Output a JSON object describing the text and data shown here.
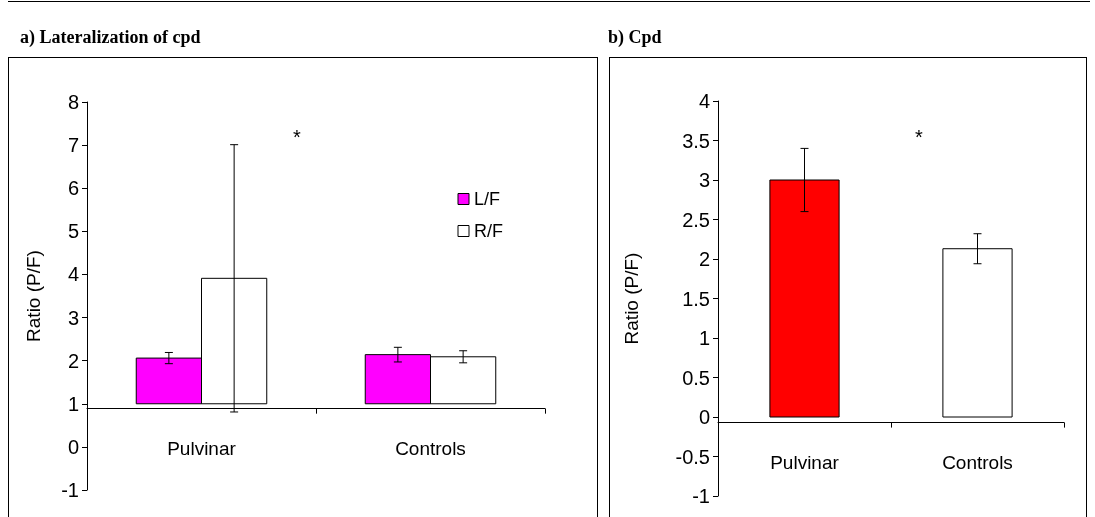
{
  "chart_data": [
    {
      "type": "bar",
      "title": "a) Lateralization of cpd",
      "ylabel": "Ratio (P/F)",
      "categories": [
        "Pulvinar",
        "Controls"
      ],
      "series": [
        {
          "name": "L/F",
          "color": "#ff00ff",
          "values": [
            1.06,
            1.14
          ],
          "base": [
            1,
            1
          ],
          "errors": [
            0.13,
            0.17
          ]
        },
        {
          "name": "R/F",
          "color": "#ffffff",
          "values": [
            2.91,
            1.09
          ],
          "base": [
            1,
            1
          ],
          "errors": [
            3.1,
            0.14
          ]
        }
      ],
      "ylim": [
        -1,
        8
      ],
      "yticks": [
        -1,
        0,
        1,
        2,
        3,
        4,
        5,
        6,
        7,
        8
      ],
      "legend": "top right",
      "annotations": [
        "*"
      ]
    },
    {
      "type": "bar",
      "title": "b) Cpd",
      "ylabel": "Ratio (P/F)",
      "categories": [
        "Pulvinar",
        "Controls"
      ],
      "values": [
        3.0,
        2.13
      ],
      "colors": [
        "#ff0000",
        "#ffffff"
      ],
      "errors": [
        0.4,
        0.19
      ],
      "ylim": [
        -1,
        4
      ],
      "yticks": [
        -1,
        -0.5,
        0,
        0.5,
        1,
        1.5,
        2,
        2.5,
        3,
        3.5,
        4
      ],
      "annotations": [
        "*"
      ]
    }
  ]
}
